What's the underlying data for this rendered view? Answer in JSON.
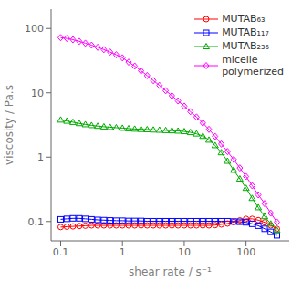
{
  "chart_data": {
    "type": "line",
    "xlabel": "shear rate / s⁻¹",
    "ylabel": "viscosity / Pa.s",
    "log": true,
    "grid": false,
    "legend": "upper right",
    "xlim": [
      0.07,
      500
    ],
    "ylim": [
      0.05,
      200
    ],
    "xticks": [
      0.1,
      1,
      10,
      100
    ],
    "yticks": [
      0.1,
      1,
      10,
      100
    ],
    "x": [
      0.1,
      0.126,
      0.158,
      0.2,
      0.251,
      0.316,
      0.398,
      0.501,
      0.631,
      0.794,
      1.0,
      1.26,
      1.58,
      2.0,
      2.51,
      3.16,
      3.98,
      5.01,
      6.31,
      7.94,
      10.0,
      12.6,
      15.8,
      20.0,
      25.1,
      31.6,
      39.8,
      50.1,
      63.1,
      79.4,
      100,
      126,
      158,
      200,
      251,
      316
    ],
    "series": [
      {
        "name": "MUTAB₆₃",
        "color": "#ff0000",
        "marker": "circle",
        "values": [
          0.082,
          0.083,
          0.084,
          0.085,
          0.086,
          0.087,
          0.087,
          0.087,
          0.087,
          0.087,
          0.087,
          0.087,
          0.087,
          0.087,
          0.087,
          0.087,
          0.087,
          0.087,
          0.087,
          0.087,
          0.087,
          0.087,
          0.087,
          0.087,
          0.087,
          0.088,
          0.09,
          0.093,
          0.098,
          0.104,
          0.11,
          0.11,
          0.105,
          0.097,
          0.087,
          0.077
        ]
      },
      {
        "name": "MUTAB₁₁₇",
        "color": "#0000ff",
        "marker": "square",
        "values": [
          0.108,
          0.11,
          0.112,
          0.112,
          0.11,
          0.108,
          0.106,
          0.105,
          0.104,
          0.103,
          0.103,
          0.102,
          0.102,
          0.102,
          0.101,
          0.101,
          0.101,
          0.101,
          0.101,
          0.101,
          0.101,
          0.101,
          0.101,
          0.101,
          0.101,
          0.101,
          0.101,
          0.101,
          0.1,
          0.099,
          0.097,
          0.092,
          0.086,
          0.077,
          0.069,
          0.061
        ]
      },
      {
        "name": "MUTAB₂₃₆",
        "color": "#00aa00",
        "marker": "triangle",
        "values": [
          3.8,
          3.65,
          3.5,
          3.35,
          3.22,
          3.12,
          3.04,
          2.97,
          2.92,
          2.87,
          2.83,
          2.78,
          2.74,
          2.71,
          2.69,
          2.66,
          2.64,
          2.61,
          2.59,
          2.56,
          2.51,
          2.43,
          2.31,
          2.12,
          1.85,
          1.52,
          1.18,
          0.87,
          0.63,
          0.46,
          0.33,
          0.23,
          0.165,
          0.12,
          0.092,
          0.073
        ]
      },
      {
        "name": "micelle\npolymerized",
        "color": "#ff00ff",
        "marker": "diamond",
        "values": [
          72,
          70,
          67,
          63,
          59,
          55,
          51,
          47,
          43,
          39,
          35,
          30,
          26,
          22,
          18.5,
          15.5,
          13.0,
          10.8,
          9.0,
          7.5,
          6.2,
          5.1,
          4.2,
          3.4,
          2.7,
          2.1,
          1.6,
          1.22,
          0.92,
          0.68,
          0.5,
          0.36,
          0.26,
          0.19,
          0.135,
          0.098
        ]
      }
    ]
  }
}
